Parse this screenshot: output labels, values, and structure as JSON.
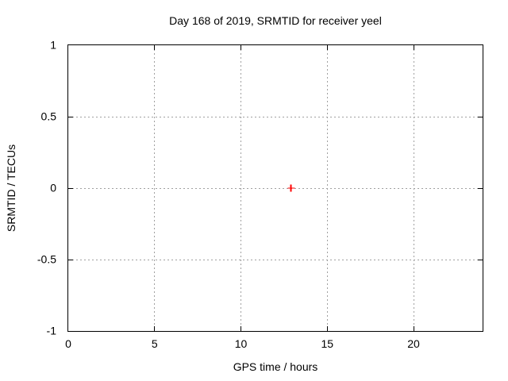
{
  "colors": {
    "background": "#ffffff",
    "axis": "#000000",
    "text": "#000000",
    "grid": "#a0a0a0",
    "point": "#ff0000"
  },
  "chart_data": {
    "type": "scatter",
    "title": "Day 168 of 2019, SRMTID for receiver yeel",
    "xlabel": "GPS time / hours",
    "ylabel": "SRMTID / TECUs",
    "xlim": [
      0,
      24
    ],
    "ylim": [
      -1,
      1
    ],
    "xticks": [
      0,
      5,
      10,
      15,
      20
    ],
    "yticks": [
      -1,
      -0.5,
      0,
      0.5,
      1
    ],
    "grid": true,
    "legend": "none",
    "series": [
      {
        "name": "SRMTID",
        "marker": "plus",
        "color": "#ff0000",
        "points": [
          {
            "x": 12.9,
            "y": 0.0
          }
        ]
      }
    ]
  }
}
